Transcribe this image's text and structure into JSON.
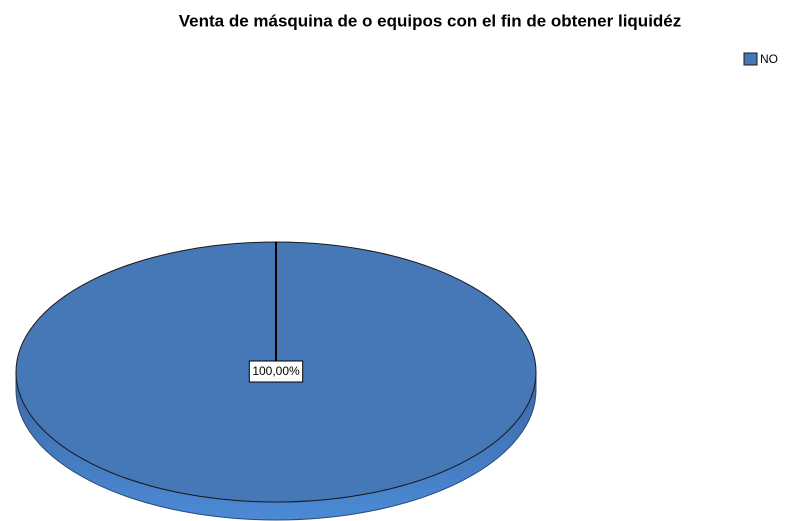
{
  "chart_data": {
    "type": "pie",
    "title": "Venta de másquina de o equipos con el fin de obtener liquidéz",
    "categories": [
      "NO"
    ],
    "values": [
      100
    ],
    "value_labels": [
      "100,00%"
    ],
    "colors": [
      "#4678b8"
    ],
    "legend": "top-right"
  }
}
